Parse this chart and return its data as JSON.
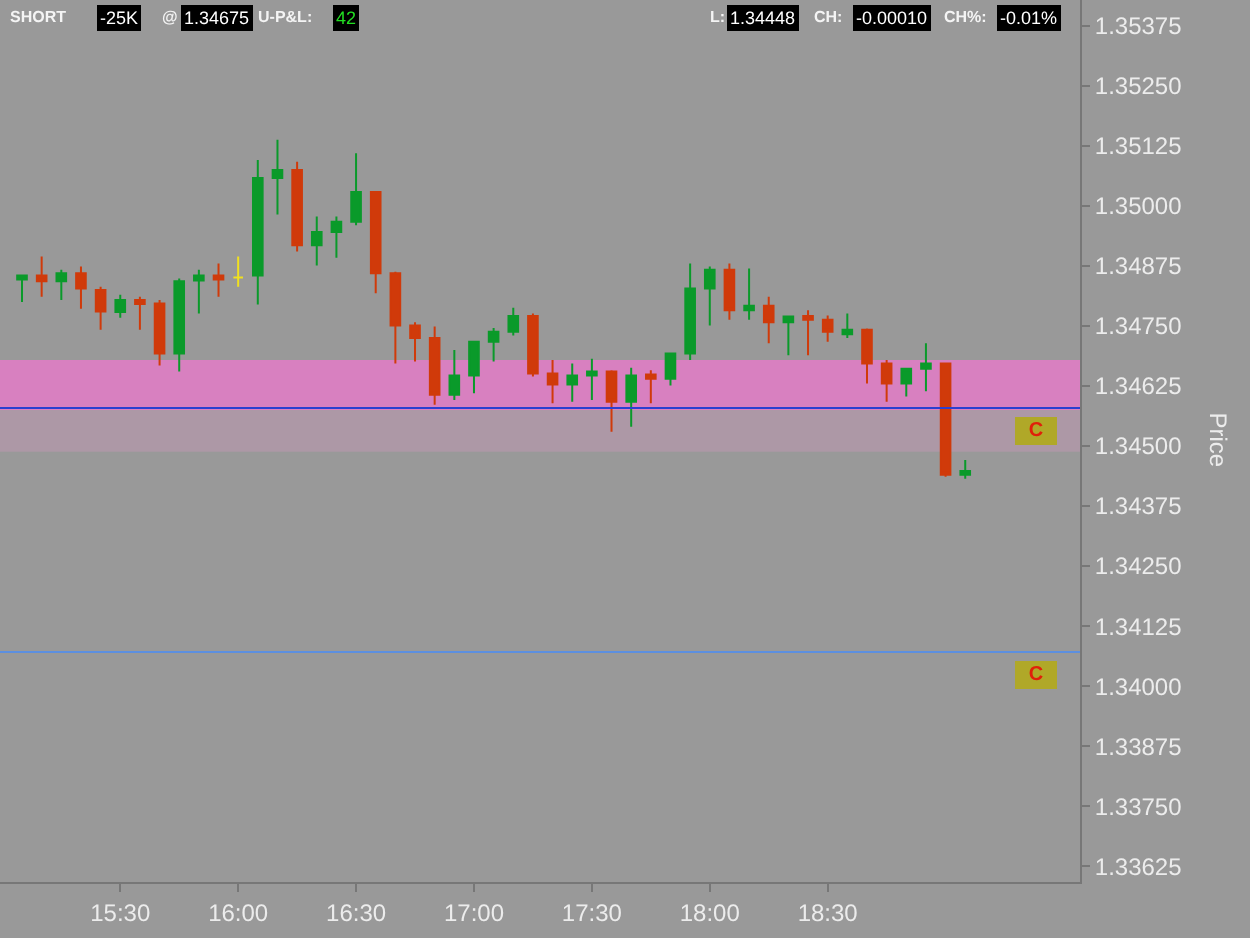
{
  "chart_data": {
    "type": "candlestick",
    "x": [
      15.0833,
      15.1667,
      15.25,
      15.3333,
      15.4167,
      15.5,
      15.5833,
      15.6667,
      15.75,
      15.8333,
      15.9167,
      16.0,
      16.0833,
      16.1667,
      16.25,
      16.3333,
      16.4167,
      16.5,
      16.5833,
      16.6667,
      16.75,
      16.8333,
      16.9167,
      17.0,
      17.0833,
      17.1667,
      17.25,
      17.3333,
      17.4167,
      17.5,
      17.5833,
      17.6667,
      17.75,
      17.8333,
      17.9167,
      18.0,
      18.0833,
      18.1667,
      18.25,
      18.3333,
      18.4167,
      18.5,
      18.5833,
      18.6667,
      18.75,
      18.8333,
      18.9167,
      19.0,
      19.0833
    ],
    "ohlc": [
      [
        1.34847,
        1.34855,
        1.348,
        1.34855
      ],
      [
        1.34855,
        1.34895,
        1.34811,
        1.34843
      ],
      [
        1.34843,
        1.34867,
        1.34804,
        1.3486
      ],
      [
        1.3486,
        1.34874,
        1.34786,
        1.34828
      ],
      [
        1.34825,
        1.34832,
        1.34742,
        1.3478
      ],
      [
        1.34779,
        1.34815,
        1.34767,
        1.34804
      ],
      [
        1.34804,
        1.34811,
        1.34742,
        1.34796
      ],
      [
        1.34797,
        1.34804,
        1.34668,
        1.34693
      ],
      [
        1.34693,
        1.34849,
        1.34655,
        1.34843
      ],
      [
        1.34845,
        1.34867,
        1.34776,
        1.34855
      ],
      [
        1.34855,
        1.3488,
        1.34811,
        1.34847
      ],
      [
        1.34851,
        1.34895,
        1.34832,
        1.34851
      ],
      [
        1.34855,
        1.35096,
        1.34795,
        1.35058
      ],
      [
        1.35058,
        1.35138,
        1.34982,
        1.35075
      ],
      [
        1.35075,
        1.35092,
        1.34905,
        1.34918
      ],
      [
        1.34918,
        1.34978,
        1.34876,
        1.34946
      ],
      [
        1.34946,
        1.34978,
        1.34892,
        1.34967
      ],
      [
        1.34967,
        1.3511,
        1.3496,
        1.35029
      ],
      [
        1.35029,
        1.3503,
        1.34818,
        1.3486
      ],
      [
        1.3486,
        1.34863,
        1.34672,
        1.34751
      ],
      [
        1.34751,
        1.34758,
        1.34676,
        1.34725
      ],
      [
        1.34725,
        1.34749,
        1.34586,
        1.34607
      ],
      [
        1.34607,
        1.347,
        1.34596,
        1.34647
      ],
      [
        1.34647,
        1.34717,
        1.3461,
        1.34717
      ],
      [
        1.34717,
        1.34746,
        1.34676,
        1.34738
      ],
      [
        1.34738,
        1.34788,
        1.3473,
        1.34771
      ],
      [
        1.34771,
        1.34776,
        1.34645,
        1.34651
      ],
      [
        1.34651,
        1.34679,
        1.34589,
        1.34628
      ],
      [
        1.34628,
        1.34672,
        1.34592,
        1.34647
      ],
      [
        1.34647,
        1.34682,
        1.34596,
        1.34655
      ],
      [
        1.34655,
        1.34658,
        1.3453,
        1.34592
      ],
      [
        1.34592,
        1.34663,
        1.3454,
        1.34647
      ],
      [
        1.34649,
        1.34658,
        1.34589,
        1.3464
      ],
      [
        1.3464,
        1.34693,
        1.34626,
        1.34693
      ],
      [
        1.34693,
        1.3488,
        1.34679,
        1.34828
      ],
      [
        1.34828,
        1.34874,
        1.34751,
        1.34867
      ],
      [
        1.34867,
        1.3488,
        1.34763,
        1.34783
      ],
      [
        1.34783,
        1.3487,
        1.34763,
        1.34792
      ],
      [
        1.34792,
        1.34811,
        1.34714,
        1.34758
      ],
      [
        1.34758,
        1.3477,
        1.34689,
        1.3477
      ],
      [
        1.34771,
        1.34783,
        1.34689,
        1.34763
      ],
      [
        1.34763,
        1.34772,
        1.34717,
        1.34738
      ],
      [
        1.34733,
        1.34776,
        1.34725,
        1.34742
      ],
      [
        1.34742,
        1.34745,
        1.3463,
        1.34672
      ],
      [
        1.34672,
        1.34679,
        1.34592,
        1.3463
      ],
      [
        1.3463,
        1.34661,
        1.34603,
        1.34661
      ],
      [
        1.34661,
        1.34714,
        1.34614,
        1.34672
      ],
      [
        1.34672,
        1.34672,
        1.34436,
        1.3444
      ],
      [
        1.3444,
        1.34471,
        1.34432,
        1.34448
      ]
    ],
    "colors": [
      "#0a9a2a",
      "#d03a0a",
      "#0a9a2a",
      "#d03a0a",
      "#d03a0a",
      "#0a9a2a",
      "#d03a0a",
      "#d03a0a",
      "#0a9a2a",
      "#0a9a2a",
      "#d03a0a",
      "#f0e020",
      "#0a9a2a",
      "#0a9a2a",
      "#d03a0a",
      "#0a9a2a",
      "#0a9a2a",
      "#0a9a2a",
      "#d03a0a",
      "#d03a0a",
      "#d03a0a",
      "#d03a0a",
      "#0a9a2a",
      "#0a9a2a",
      "#0a9a2a",
      "#0a9a2a",
      "#d03a0a",
      "#d03a0a",
      "#0a9a2a",
      "#0a9a2a",
      "#d03a0a",
      "#0a9a2a",
      "#d03a0a",
      "#0a9a2a",
      "#0a9a2a",
      "#0a9a2a",
      "#d03a0a",
      "#0a9a2a",
      "#d03a0a",
      "#0a9a2a",
      "#d03a0a",
      "#d03a0a",
      "#0a9a2a",
      "#d03a0a",
      "#d03a0a",
      "#0a9a2a",
      "#0a9a2a",
      "#d03a0a",
      "#0a9a2a"
    ],
    "xlim": [
      14.99,
      19.57
    ],
    "xticks": [
      {
        "value": 15.5,
        "label": "15:30"
      },
      {
        "value": 16.0,
        "label": "16:00"
      },
      {
        "value": 16.5,
        "label": "16:30"
      },
      {
        "value": 17.0,
        "label": "17:00"
      },
      {
        "value": 17.5,
        "label": "17:30"
      },
      {
        "value": 18.0,
        "label": "18:00"
      },
      {
        "value": 18.5,
        "label": "18:30"
      }
    ],
    "ylim": [
      1.33592,
      1.35429
    ],
    "yticks": [
      {
        "value": 1.35375,
        "label": "1.35375"
      },
      {
        "value": 1.3525,
        "label": "1.35250"
      },
      {
        "value": 1.35125,
        "label": "1.35125"
      },
      {
        "value": 1.35,
        "label": "1.35000"
      },
      {
        "value": 1.34875,
        "label": "1.34875"
      },
      {
        "value": 1.3475,
        "label": "1.34750"
      },
      {
        "value": 1.34625,
        "label": "1.34625"
      },
      {
        "value": 1.345,
        "label": "1.34500"
      },
      {
        "value": 1.34375,
        "label": "1.34375"
      },
      {
        "value": 1.3425,
        "label": "1.34250"
      },
      {
        "value": 1.34125,
        "label": "1.34125"
      },
      {
        "value": 1.34,
        "label": "1.34000"
      },
      {
        "value": 1.33875,
        "label": "1.33875"
      },
      {
        "value": 1.3375,
        "label": "1.33750"
      },
      {
        "value": 1.33625,
        "label": "1.33625"
      }
    ],
    "ylabel": "Price",
    "bands": [
      {
        "axis": "y",
        "from": 1.34575,
        "to": 1.34679,
        "color": "#d880c0"
      },
      {
        "axis": "y",
        "from": 1.34488,
        "to": 1.34575,
        "color": "#ad98a6"
      }
    ],
    "ref_lines": [
      {
        "axis": "y",
        "value": 1.34579,
        "label": "C",
        "color": "#2b3fd0"
      },
      {
        "axis": "y",
        "value": 1.34071,
        "label": "C",
        "color": "#5c8fe0"
      }
    ],
    "annotations": [
      "SHORT",
      "-25K",
      "@",
      "1.34675",
      "U-P&L:",
      "42",
      "L:",
      "1.34448",
      "CH:",
      "-0.00010",
      "CH%:",
      "-0.01%"
    ],
    "grid": false,
    "legend": false
  }
}
